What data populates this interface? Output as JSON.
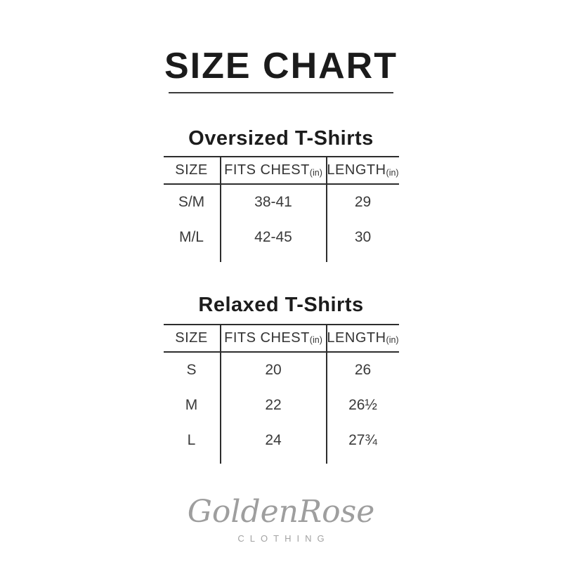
{
  "header": {
    "title": "SIZE CHART"
  },
  "tables": [
    {
      "heading": "Oversized T-Shirts",
      "columns": [
        {
          "label": "SIZE",
          "unit": ""
        },
        {
          "label": "FITS CHEST",
          "unit": "(in)"
        },
        {
          "label": "LENGTH",
          "unit": "(in)"
        }
      ],
      "rows": [
        {
          "size": "S/M",
          "chest": "38-41",
          "length": "29"
        },
        {
          "size": "M/L",
          "chest": "42-45",
          "length": "30"
        }
      ]
    },
    {
      "heading": "Relaxed T-Shirts",
      "columns": [
        {
          "label": "SIZE",
          "unit": ""
        },
        {
          "label": "FITS CHEST",
          "unit": "(in)"
        },
        {
          "label": "LENGTH",
          "unit": "(in)"
        }
      ],
      "rows": [
        {
          "size": "S",
          "chest": "20",
          "length": "26"
        },
        {
          "size": "M",
          "chest": "22",
          "length": "26½"
        },
        {
          "size": "L",
          "chest": "24",
          "length": "27¾"
        }
      ]
    }
  ],
  "footer": {
    "brand_script": "GoldenRose",
    "brand_sub": "CLOTHING"
  },
  "colors": {
    "title_text": "#1b1b1b",
    "table_text": "#3a3a3a",
    "table_border": "#2d2d2d",
    "logo_gray": "#9e9e9e",
    "background": "#ffffff"
  }
}
